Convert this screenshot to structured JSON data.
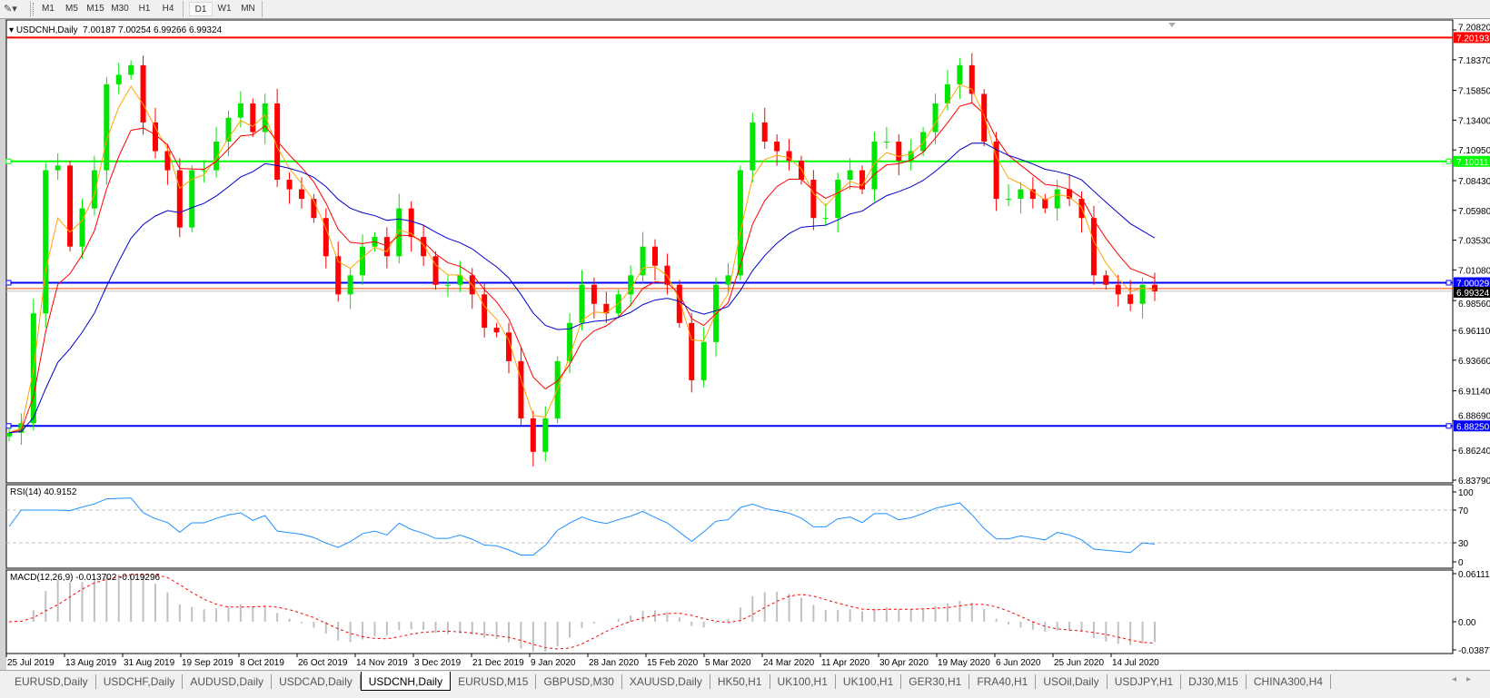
{
  "toolbar": {
    "tool_icon": "line-studies-icon",
    "timeframes": [
      "M1",
      "M5",
      "M15",
      "M30",
      "H1",
      "H4",
      "D1",
      "W1",
      "MN"
    ],
    "active_timeframe": "D1"
  },
  "chart": {
    "symbol_title": "USDCNH,Daily",
    "ohlc": "7.00187 7.00254 6.99266 6.99324"
  },
  "rsi": {
    "label": "RSI(14) 40.9152",
    "levels": [
      "100",
      "70",
      "30",
      "0"
    ]
  },
  "macd": {
    "label": "MACD(12,26,9) -0.013702 -0.019296",
    "levels": [
      "0.061119",
      "0.00",
      "-0.03877"
    ]
  },
  "tabs": [
    "EURUSD,Daily",
    "USDCHF,Daily",
    "AUDUSD,Daily",
    "USDCAD,Daily",
    "USDCNH,Daily",
    "EURUSD,M15",
    "GBPUSD,M30",
    "XAUUSD,Daily",
    "HK50,H1",
    "UK100,H1",
    "UK100,H1",
    "GER30,H1",
    "FRA40,H1",
    "USOil,Daily",
    "USDJPY,H1",
    "DJ30,M15",
    "CHINA300,H4"
  ],
  "active_tab": "USDCNH,Daily",
  "colors": {
    "bull": "#00e600",
    "bear": "#ff0000",
    "ma_fast": "#ffa500",
    "ma_mid": "#ff0000",
    "ma_slow": "#0000c8",
    "rsi": "#1e90ff",
    "macd_hist": "#c0c0c0",
    "macd_signal": "#ff0000",
    "hline_red": "#ff0000",
    "hline_green": "#00ff00",
    "hline_blue": "#0000ff"
  },
  "chart_data": {
    "type": "candlestick",
    "ylim": [
      6.8379,
      7.2082
    ],
    "y_ticks": [
      "7.20820",
      "7.18370",
      "7.15850",
      "7.13400",
      "7.10950",
      "7.08430",
      "7.05980",
      "7.03530",
      "7.01080",
      "6.98560",
      "6.96110",
      "6.93660",
      "6.91140",
      "6.88690",
      "6.86240",
      "6.83790"
    ],
    "x_ticks": [
      "25 Jul 2019",
      "13 Aug 2019",
      "31 Aug 2019",
      "19 Sep 2019",
      "8 Oct 2019",
      "26 Oct 2019",
      "14 Nov 2019",
      "3 Dec 2019",
      "21 Dec 2019",
      "9 Jan 2020",
      "28 Jan 2020",
      "15 Feb 2020",
      "5 Mar 2020",
      "24 Mar 2020",
      "11 Apr 2020",
      "30 Apr 2020",
      "19 May 2020",
      "6 Jun 2020",
      "25 Jun 2020",
      "14 Jul 2020"
    ],
    "closes": [
      6.8769,
      6.8848,
      6.9751,
      7.0928,
      7.0967,
      7.03,
      7.0614,
      7.0928,
      7.1635,
      7.1713,
      7.1792,
      7.1321,
      7.1085,
      7.0928,
      7.0457,
      7.0928,
      7.0928,
      7.1164,
      7.136,
      7.1478,
      7.1242,
      7.1478,
      7.085,
      7.0771,
      7.0693,
      7.0535,
      7.0221,
      6.9907,
      7.0064,
      7.03,
      7.0379,
      7.0221,
      7.0614,
      7.0379,
      7.0221,
      6.9986,
      6.9986,
      7.0064,
      6.9907,
      6.9633,
      6.9594,
      6.9358,
      6.8887,
      6.8612,
      6.8887,
      6.9358,
      6.9672,
      6.9986,
      6.9829,
      6.9751,
      6.9907,
      7.0064,
      7.03,
      7.0143,
      6.9986,
      6.9672,
      6.9201,
      6.9515,
      6.9986,
      7.0064,
      7.0928,
      7.1321,
      7.1164,
      7.1085,
      7.1007,
      7.085,
      7.0535,
      7.0535,
      7.085,
      7.0928,
      7.0771,
      7.1164,
      7.1164,
      7.1007,
      7.1085,
      7.1242,
      7.1478,
      7.1635,
      7.1792,
      7.1556,
      7.1164,
      7.0693,
      7.0693,
      7.0771,
      7.0693,
      7.0614,
      7.0771,
      7.0693,
      7.0535,
      7.0064,
      6.9986,
      6.9907,
      6.9829,
      6.9986,
      6.99324
    ],
    "horizontal_lines": [
      {
        "price": 7.20193,
        "label": "7.20193",
        "color": "#ff0000"
      },
      {
        "price": 7.10011,
        "label": "7.10011",
        "color": "#00ff00"
      },
      {
        "price": 7.00029,
        "label": "7.00029",
        "color": "#0000ff"
      },
      {
        "price": 6.8825,
        "label": "6.88250",
        "color": "#0000ff"
      }
    ],
    "current_price": {
      "price": 6.99324,
      "label": "6.99324"
    },
    "indicators": [
      "MA fast (orange)",
      "MA medium (red)",
      "MA slow (blue)",
      "RSI(14)",
      "MACD(12,26,9)"
    ],
    "grid": false
  }
}
